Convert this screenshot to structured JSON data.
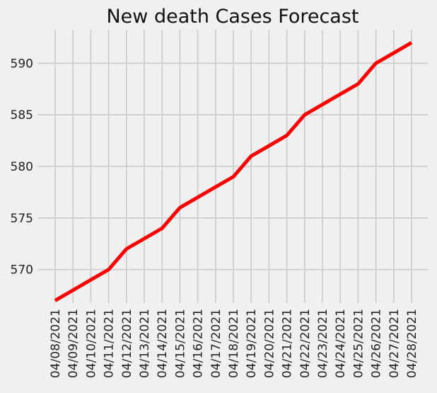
{
  "chart_data": {
    "type": "line",
    "title": "New death Cases Forecast",
    "xlabel": "",
    "ylabel": "",
    "x": [
      "04/08/2021",
      "04/09/2021",
      "04/10/2021",
      "04/11/2021",
      "04/12/2021",
      "04/13/2021",
      "04/14/2021",
      "04/15/2021",
      "04/16/2021",
      "04/17/2021",
      "04/18/2021",
      "04/19/2021",
      "04/20/2021",
      "04/21/2021",
      "04/22/2021",
      "04/23/2021",
      "04/24/2021",
      "04/25/2021",
      "04/26/2021",
      "04/27/2021",
      "04/28/2021"
    ],
    "series": [
      {
        "values": [
          567,
          568,
          569,
          570,
          572,
          573,
          574,
          576,
          577,
          578,
          579,
          581,
          582,
          583,
          585,
          586,
          587,
          588,
          590,
          591,
          592
        ],
        "color": "#ff0000"
      }
    ],
    "yticks": [
      570,
      575,
      580,
      585,
      590
    ],
    "ylim": [
      566.75,
      593.25
    ],
    "grid": true,
    "background": "#f0f0f0",
    "grid_color": "#cbcbcb",
    "legend": "none"
  }
}
